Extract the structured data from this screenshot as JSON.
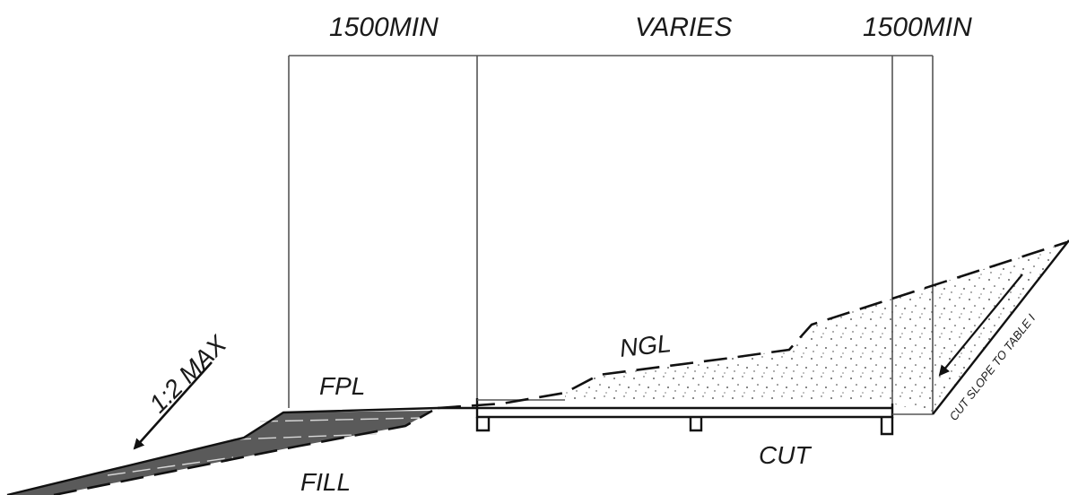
{
  "dimensions": {
    "left_width": "1500MIN",
    "middle_width": "VARIES",
    "right_width": "1500MIN"
  },
  "labels": {
    "fill_slope": "1:2 MAX",
    "ffl": "FPL",
    "fill": "FILL",
    "ngl": "NGL",
    "cut": "CUT",
    "cut_slope": "CUT SLOPE TO TABLE I"
  }
}
